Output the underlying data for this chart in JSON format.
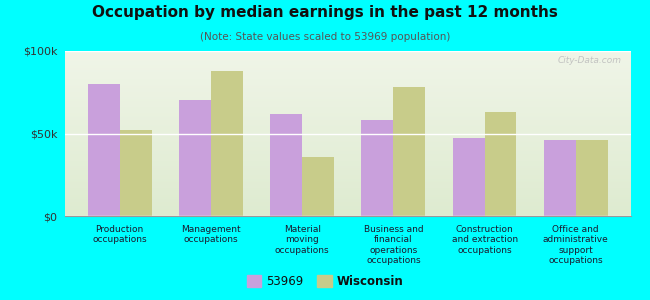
{
  "title": "Occupation by median earnings in the past 12 months",
  "subtitle": "(Note: State values scaled to 53969 population)",
  "categories": [
    "Production\noccupations",
    "Management\noccupations",
    "Material\nmoving\noccupations",
    "Business and\nfinancial\noperations\noccupations",
    "Construction\nand extraction\noccupations",
    "Office and\nadministrative\nsupport\noccupations"
  ],
  "values_53969": [
    80000,
    70000,
    62000,
    58000,
    47000,
    46000
  ],
  "values_wisconsin": [
    52000,
    88000,
    36000,
    78000,
    63000,
    46000
  ],
  "color_53969": "#c9a0dc",
  "color_wisconsin": "#c8cc8a",
  "background_outer": "#00ffff",
  "background_chart_top": "#f0f5e8",
  "background_chart_bot": "#deebd0",
  "ylim": [
    0,
    100000
  ],
  "yticks": [
    0,
    50000,
    100000
  ],
  "ytick_labels": [
    "$0",
    "$50k",
    "$100k"
  ],
  "legend_label_53969": "53969",
  "legend_label_wisconsin": "Wisconsin",
  "watermark": "City-Data.com"
}
